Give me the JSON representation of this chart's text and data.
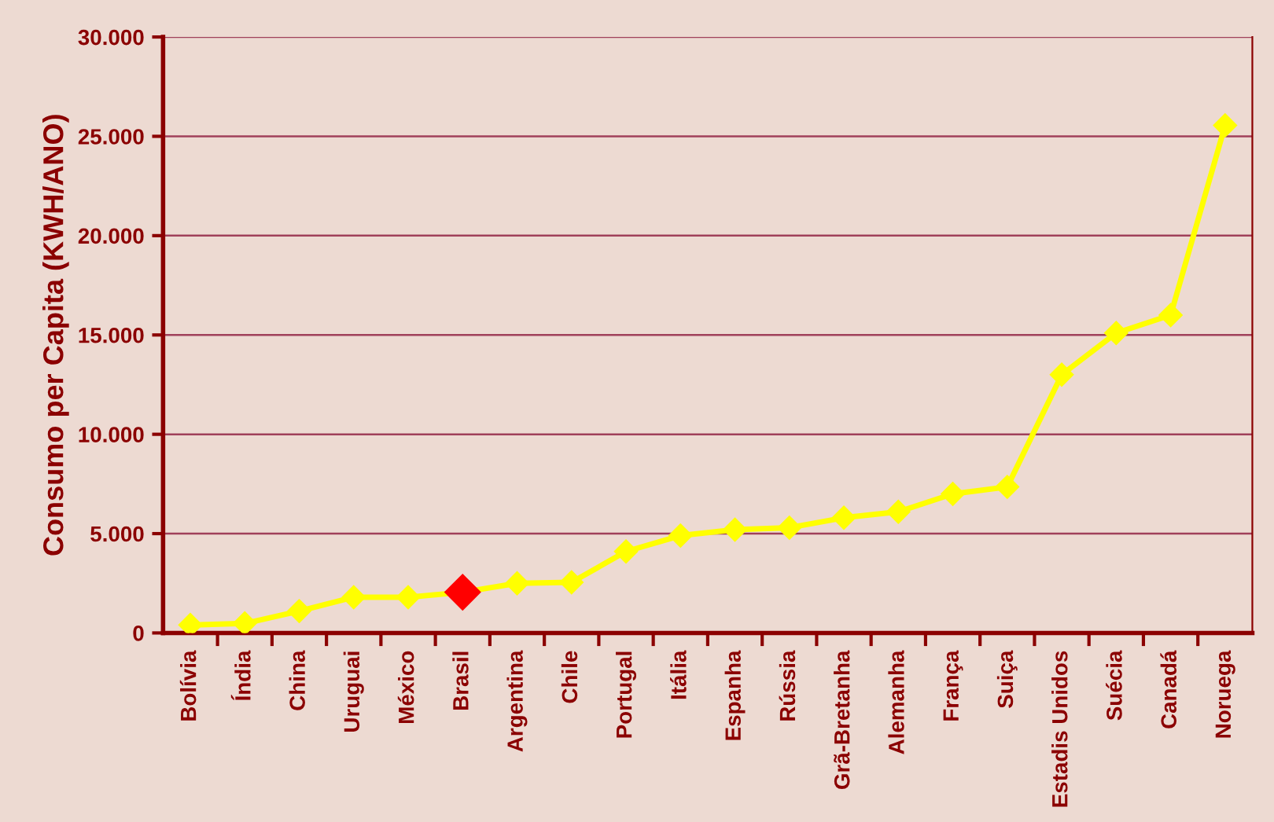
{
  "chart_data": {
    "type": "line",
    "ylabel": "Consumo per Capita (KWH/ANO)",
    "categories": [
      "Bolívia",
      "Índia",
      "China",
      "Uruguai",
      "México",
      "Brasil",
      "Argentina",
      "Chile",
      "Portugal",
      "Itália",
      "Espanha",
      "Rússia",
      "Grã-Bretanha",
      "Alemanha",
      "França",
      "Suiça",
      "Estadis Unidos",
      "Suécia",
      "Canadá",
      "Noruega"
    ],
    "series": [
      {
        "color": "#ffff00",
        "values": [
          400,
          480,
          1100,
          1800,
          1800,
          2050,
          2500,
          2550,
          4100,
          4900,
          5200,
          5300,
          5800,
          6100,
          7000,
          7350,
          13000,
          15100,
          16000,
          25550
        ],
        "colors": [
          "#ffff00",
          "#ffff00",
          "#ffff00",
          "#ffff00",
          "#ffff00",
          "#ff0000",
          "#ffff00",
          "#ffff00",
          "#ffff00",
          "#ffff00",
          "#ffff00",
          "#ffff00",
          "#ffff00",
          "#ffff00",
          "#ffff00",
          "#ffff00",
          "#ffff00",
          "#ffff00",
          "#ffff00",
          "#ffff00"
        ]
      }
    ],
    "ylim": [
      0,
      30000
    ],
    "yticks": [
      0,
      {
        "value": 5000,
        "label": "5.000"
      },
      {
        "value": 10000,
        "label": "10.000"
      },
      {
        "value": 15000,
        "label": "15.000"
      },
      {
        "value": 20000,
        "label": "20.000"
      },
      {
        "value": 25000,
        "label": "25.000"
      },
      {
        "value": 30000,
        "label": "30.000"
      }
    ],
    "grid": "y",
    "marker": "diamond",
    "line_style": "solid",
    "legend": false
  }
}
